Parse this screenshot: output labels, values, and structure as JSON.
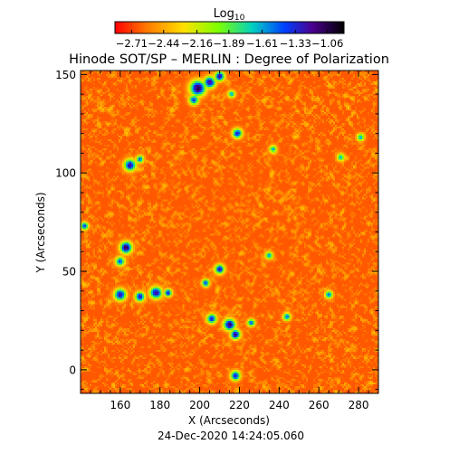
{
  "chart_data": {
    "type": "heatmap",
    "title": "Hinode SOT/SP – MERLIN : Degree of Polarization",
    "xlabel": "X (Arcseconds)",
    "ylabel": "Y (Arcseconds)",
    "timestamp": "24-Dec-2020 14:24:05.060",
    "colorbar": {
      "label_base": "Log",
      "label_sub": "10",
      "ticks": [
        "−2.71",
        "−2.44",
        "−2.16",
        "−1.89",
        "−1.61",
        "−1.33",
        "−1.06"
      ],
      "range": [
        -2.85,
        -0.92
      ],
      "colormap": [
        "#ff0000",
        "#ff7a00",
        "#ffe000",
        "#7dff00",
        "#00d0c0",
        "#0040ff",
        "#4a0090",
        "#000000"
      ]
    },
    "x_ticks": [
      {
        "value": 160,
        "label": "160"
      },
      {
        "value": 180,
        "label": "180"
      },
      {
        "value": 200,
        "label": "200"
      },
      {
        "value": 220,
        "label": "220"
      },
      {
        "value": 240,
        "label": "240"
      },
      {
        "value": 260,
        "label": "260"
      },
      {
        "value": 280,
        "label": "280"
      }
    ],
    "y_ticks": [
      {
        "value": 0,
        "label": "0"
      },
      {
        "value": 50,
        "label": "50"
      },
      {
        "value": 100,
        "label": "100"
      },
      {
        "value": 150,
        "label": "150"
      }
    ],
    "xlim": [
      140,
      290
    ],
    "ylim": [
      -12,
      152
    ],
    "background_level": -2.65,
    "features": [
      {
        "x": 199,
        "y": 143,
        "r": 4,
        "peak": -1.05
      },
      {
        "x": 205,
        "y": 146,
        "r": 3,
        "peak": -1.15
      },
      {
        "x": 210,
        "y": 149,
        "r": 2.5,
        "peak": -1.2
      },
      {
        "x": 197,
        "y": 137,
        "r": 2.5,
        "peak": -1.4
      },
      {
        "x": 216,
        "y": 140,
        "r": 2,
        "peak": -1.7
      },
      {
        "x": 219,
        "y": 120,
        "r": 2.5,
        "peak": -1.3
      },
      {
        "x": 165,
        "y": 104,
        "r": 3,
        "peak": -1.2
      },
      {
        "x": 170,
        "y": 107,
        "r": 2,
        "peak": -1.5
      },
      {
        "x": 163,
        "y": 62,
        "r": 3,
        "peak": -1.05
      },
      {
        "x": 160,
        "y": 55,
        "r": 2.5,
        "peak": -1.5
      },
      {
        "x": 160,
        "y": 38,
        "r": 3,
        "peak": -1.2
      },
      {
        "x": 170,
        "y": 37,
        "r": 2.5,
        "peak": -1.25
      },
      {
        "x": 178,
        "y": 39,
        "r": 3,
        "peak": -1.15
      },
      {
        "x": 184,
        "y": 39,
        "r": 2,
        "peak": -1.3
      },
      {
        "x": 210,
        "y": 51,
        "r": 2.5,
        "peak": -1.3
      },
      {
        "x": 203,
        "y": 44,
        "r": 2,
        "peak": -1.4
      },
      {
        "x": 206,
        "y": 26,
        "r": 2.5,
        "peak": -1.3
      },
      {
        "x": 215,
        "y": 23,
        "r": 3,
        "peak": -1.1
      },
      {
        "x": 218,
        "y": 18,
        "r": 2.5,
        "peak": -1.15
      },
      {
        "x": 226,
        "y": 24,
        "r": 2,
        "peak": -1.5
      },
      {
        "x": 218,
        "y": -3,
        "r": 2.5,
        "peak": -1.3
      },
      {
        "x": 142,
        "y": 73,
        "r": 2,
        "peak": -1.4
      },
      {
        "x": 237,
        "y": 112,
        "r": 2,
        "peak": -1.7
      },
      {
        "x": 235,
        "y": 58,
        "r": 2,
        "peak": -1.6
      },
      {
        "x": 244,
        "y": 27,
        "r": 2,
        "peak": -1.5
      },
      {
        "x": 265,
        "y": 38,
        "r": 2,
        "peak": -1.5
      },
      {
        "x": 271,
        "y": 108,
        "r": 2,
        "peak": -1.7
      },
      {
        "x": 281,
        "y": 118,
        "r": 2,
        "peak": -1.7
      }
    ]
  }
}
